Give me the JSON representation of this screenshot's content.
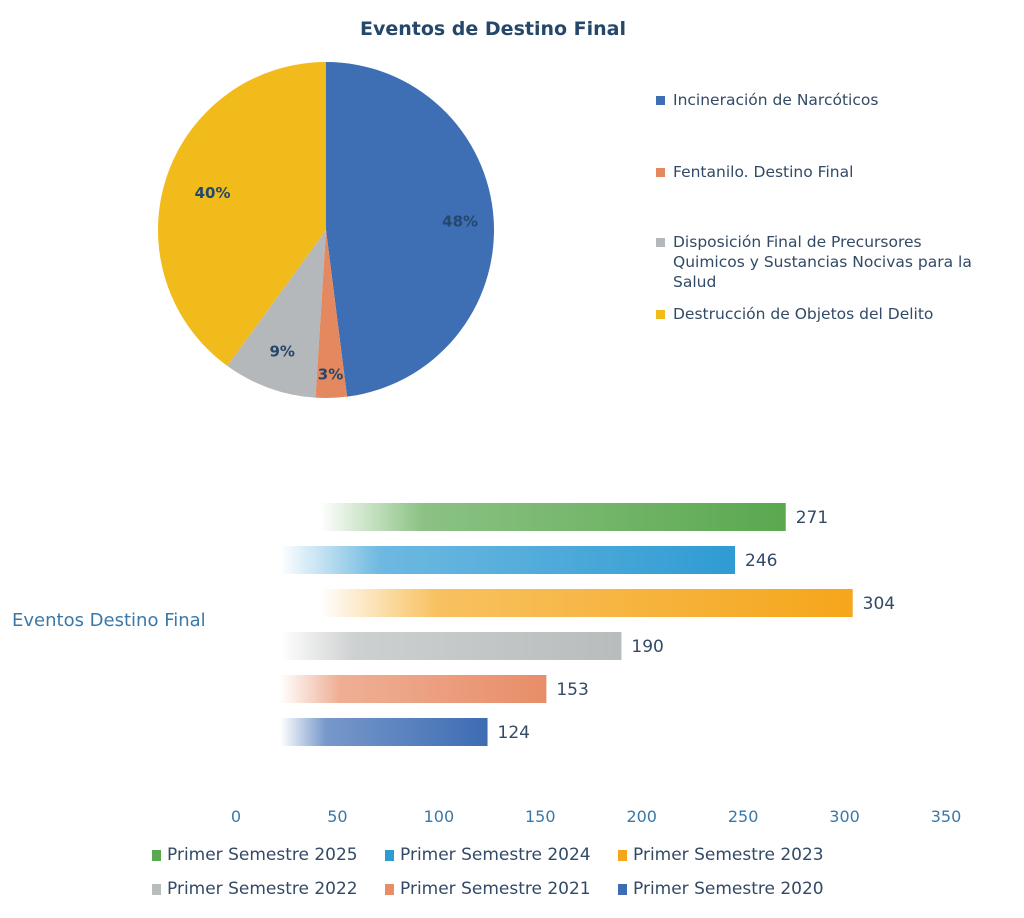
{
  "chart_data": [
    {
      "type": "pie",
      "title": "Eventos de Destino Final",
      "legend_position": "right",
      "slices": [
        {
          "label": "Incineración de Narcóticos",
          "value": 48,
          "value_label": "48%",
          "color": "#3e6fb5"
        },
        {
          "label": "Fentanilo. Destino Final",
          "value": 3,
          "value_label": "3%",
          "color": "#e3885f"
        },
        {
          "label": "Disposición Final de Precursores Quimicos y Sustancias Nocivas para la Salud",
          "value": 9,
          "value_label": "9%",
          "color": "#b4b8bb"
        },
        {
          "label": "Destrucción de Objetos del Delito",
          "value": 40,
          "value_label": "40%",
          "color": "#f1bb1c"
        }
      ]
    },
    {
      "type": "bar",
      "orientation": "horizontal",
      "category_label": "Eventos Destino Final",
      "xlim": [
        0,
        350
      ],
      "xticks": [
        "0",
        "50",
        "100",
        "150",
        "200",
        "250",
        "300",
        "350"
      ],
      "legend_position": "bottom",
      "series": [
        {
          "name": "Primer Semestre 2025",
          "value": 271,
          "value_label": "271",
          "color": "#5aa84f"
        },
        {
          "name": "Primer Semestre 2024",
          "value": 246,
          "value_label": "246",
          "color": "#2f9bd3"
        },
        {
          "name": "Primer Semestre 2023",
          "value": 304,
          "value_label": "304",
          "color": "#f5a61b"
        },
        {
          "name": "Primer Semestre 2022",
          "value": 190,
          "value_label": "190",
          "color": "#b8bcbd"
        },
        {
          "name": "Primer Semestre 2021",
          "value": 153,
          "value_label": "153",
          "color": "#e88d68"
        },
        {
          "name": "Primer Semestre 2020",
          "value": 124,
          "value_label": "124",
          "color": "#3d6cb3"
        }
      ]
    }
  ]
}
